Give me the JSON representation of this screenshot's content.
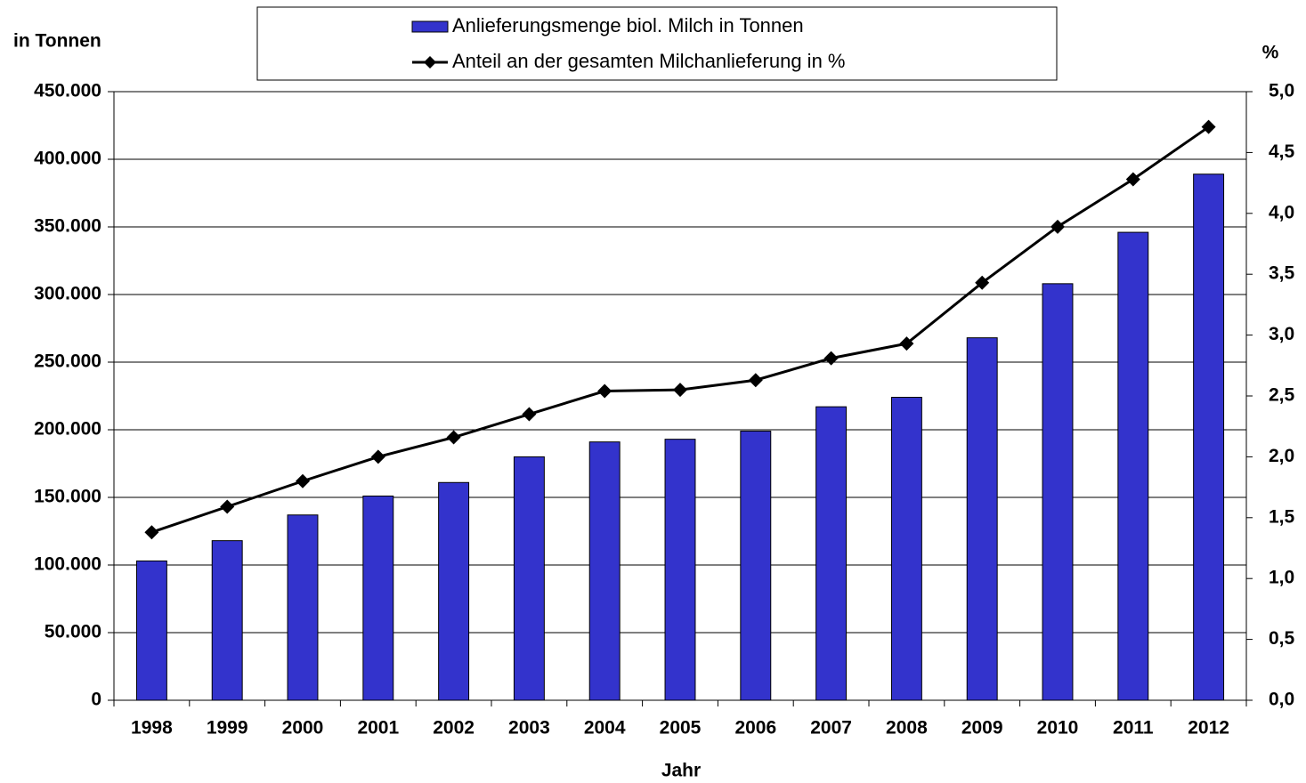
{
  "chart_data": {
    "type": "bar",
    "y_label": "in Tonnen",
    "y2_label": "%",
    "x_label": "Jahr",
    "categories": [
      "1998",
      "1999",
      "2000",
      "2001",
      "2002",
      "2003",
      "2004",
      "2005",
      "2006",
      "2007",
      "2008",
      "2009",
      "2010",
      "2011",
      "2012"
    ],
    "series": [
      {
        "name": "Anlieferungsmenge biol. Milch in Tonnen",
        "type": "bar",
        "color": "#3333cc",
        "values": [
          103000,
          118000,
          137000,
          151000,
          161000,
          180000,
          191000,
          193000,
          199000,
          217000,
          224000,
          268000,
          308000,
          346000,
          389000
        ]
      },
      {
        "name": "Anteil an der gesamten Milchanlieferung in %",
        "type": "line",
        "color": "#000000",
        "axis": "y2",
        "values": [
          1.38,
          1.59,
          1.8,
          2.0,
          2.16,
          2.35,
          2.54,
          2.55,
          2.63,
          2.81,
          2.93,
          3.43,
          3.89,
          4.28,
          4.71
        ]
      }
    ],
    "ylim": [
      0,
      450000
    ],
    "yticks": [
      0,
      {
        "value": 50000,
        "label": "50.000"
      },
      {
        "value": 100000,
        "label": "100.000"
      },
      {
        "value": 150000,
        "label": "150.000"
      },
      {
        "value": 200000,
        "label": "200.000"
      },
      {
        "value": 250000,
        "label": "250.000"
      },
      {
        "value": 300000,
        "label": "300.000"
      },
      {
        "value": 350000,
        "label": "350.000"
      },
      {
        "value": 400000,
        "label": "400.000"
      },
      {
        "value": 450000,
        "label": "450.000"
      }
    ],
    "y2lim": [
      0,
      5
    ],
    "y2ticks": [
      {
        "value": 0,
        "label": "0,0"
      },
      {
        "value": 0.5,
        "label": "0,5"
      },
      {
        "value": 1,
        "label": "1,0"
      },
      {
        "value": 1.5,
        "label": "1,5"
      },
      {
        "value": 2,
        "label": "2,0"
      },
      {
        "value": 2.5,
        "label": "2,5"
      },
      {
        "value": 3,
        "label": "3,0"
      },
      {
        "value": 3.5,
        "label": "3,5"
      },
      {
        "value": 4,
        "label": "4,0"
      },
      {
        "value": 4.5,
        "label": "4,5"
      },
      {
        "value": 5,
        "label": "5,0"
      }
    ],
    "grid": true
  }
}
